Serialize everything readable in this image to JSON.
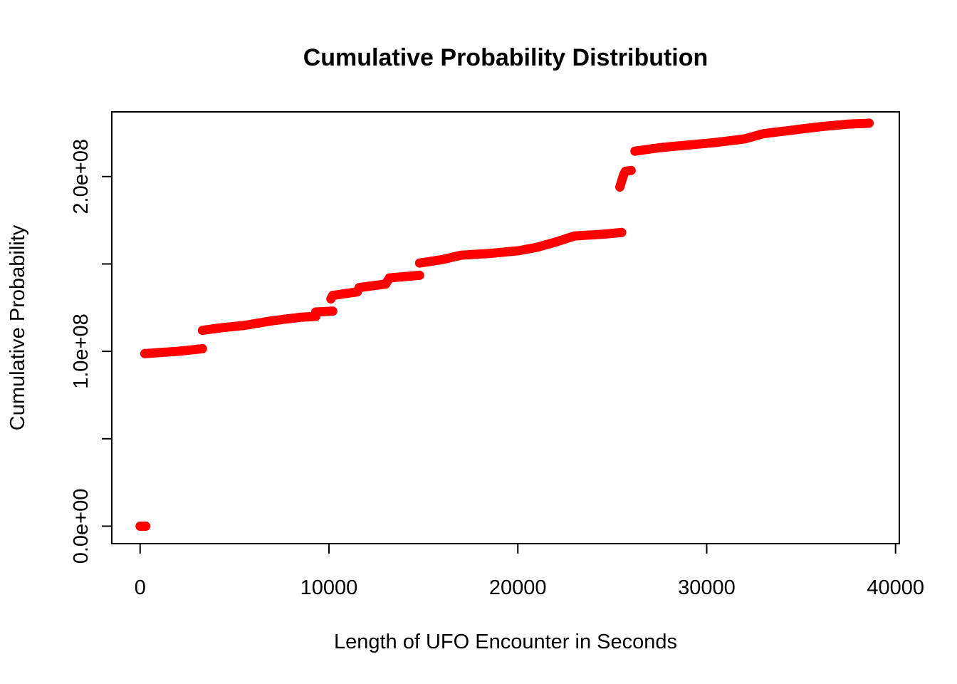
{
  "chart_data": {
    "type": "scatter",
    "title": "Cumulative Probability Distribution",
    "xlabel": "Length of UFO Encounter in Seconds",
    "ylabel": "Cumulative Probability",
    "xlim": [
      -1500,
      40200
    ],
    "ylim": [
      -10000000,
      237000000
    ],
    "x_ticks": [
      0,
      10000,
      20000,
      30000,
      40000
    ],
    "x_tick_labels": [
      "0",
      "10000",
      "20000",
      "30000",
      "40000"
    ],
    "y_ticks": [
      0,
      50000000,
      100000000,
      150000000,
      200000000
    ],
    "y_tick_labels": [
      "0.0e+00",
      "",
      "1.0e+08",
      "",
      "2.0e+08"
    ],
    "point_color": "#ff0000",
    "grid": false,
    "series": [
      {
        "points": [
          [
            0,
            0
          ],
          [
            300,
            0
          ],
          [
            250,
            98700000
          ],
          [
            1000,
            99300000
          ],
          [
            2000,
            100000000
          ],
          [
            3300,
            101500000
          ],
          [
            3300,
            112000000
          ],
          [
            4300,
            113500000
          ],
          [
            5500,
            114800000
          ],
          [
            7000,
            117500000
          ],
          [
            8500,
            119500000
          ],
          [
            9300,
            120000000
          ],
          [
            9300,
            122500000
          ],
          [
            10200,
            123000000
          ],
          [
            10100,
            130000000
          ],
          [
            10200,
            132000000
          ],
          [
            11500,
            134000000
          ],
          [
            11600,
            136500000
          ],
          [
            13000,
            138500000
          ],
          [
            13200,
            142000000
          ],
          [
            14800,
            143500000
          ],
          [
            14800,
            150500000
          ],
          [
            16000,
            152500000
          ],
          [
            17000,
            155000000
          ],
          [
            18500,
            156000000
          ],
          [
            20000,
            157500000
          ],
          [
            21000,
            159500000
          ],
          [
            22000,
            162500000
          ],
          [
            23000,
            166000000
          ],
          [
            24500,
            167000000
          ],
          [
            25500,
            168000000
          ],
          [
            25400,
            194000000
          ],
          [
            25600,
            201000000
          ],
          [
            25700,
            203000000
          ],
          [
            26000,
            203500000
          ],
          [
            26200,
            214500000
          ],
          [
            27500,
            216500000
          ],
          [
            29000,
            218000000
          ],
          [
            30500,
            219500000
          ],
          [
            32000,
            221500000
          ],
          [
            33000,
            224500000
          ],
          [
            34500,
            226500000
          ],
          [
            36000,
            228500000
          ],
          [
            37500,
            230000000
          ],
          [
            38600,
            230500000
          ]
        ]
      }
    ]
  }
}
